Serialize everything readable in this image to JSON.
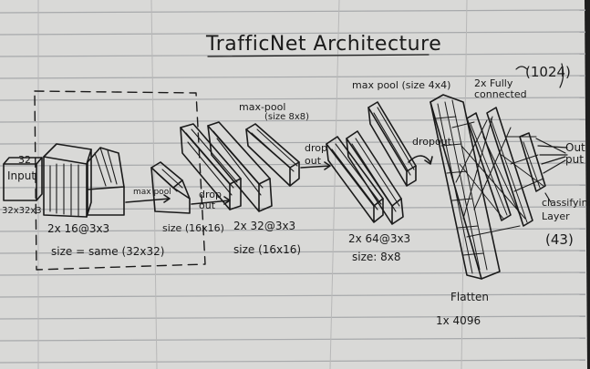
{
  "paper_colors": {
    "sheet": "#d9d9d7",
    "ruling": "#a7a9ab",
    "margin": "#b8b8b8",
    "ink": "#1a1a1a"
  },
  "title": "TrafficNet Architecture",
  "input": {
    "label": "Input",
    "top_dim": "32",
    "size": "32x32x3"
  },
  "conv1": {
    "filters": "2x 16@3x3",
    "size": "size = same (32x32)"
  },
  "pool1": {
    "label": "max pool",
    "size": "size (16x16)",
    "dropout": "drop out"
  },
  "conv2": {
    "filters": "2x 32@3x3",
    "size": "size (16x16)"
  },
  "pool2": {
    "label": "max-pool",
    "size": "(size 8x8)",
    "dropout": "drop out"
  },
  "conv3": {
    "filters": "2x 64@3x3",
    "size": "size: 8x8"
  },
  "pool3": {
    "label": "max pool (size 4x4)",
    "dropout": "dropout"
  },
  "flatten": {
    "label": "Flatten",
    "size": "1x 4096"
  },
  "dense": {
    "label": "2x Fully connected",
    "units": "(1024)"
  },
  "classifier": {
    "label": "classifying Layer",
    "units": "(43)"
  },
  "output": {
    "label": "Out put"
  }
}
